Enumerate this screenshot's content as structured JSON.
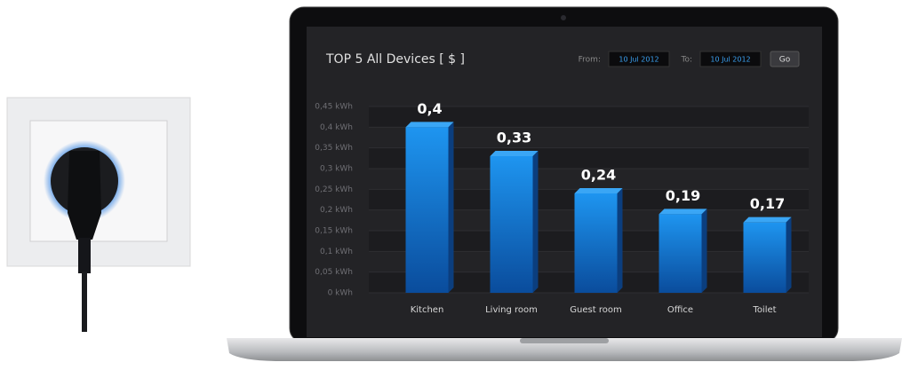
{
  "chart_data": {
    "type": "bar",
    "title": "TOP 5 All Devices [ $ ]",
    "categories": [
      "Kitchen",
      "Living room",
      "Guest room",
      "Office",
      "Toilet"
    ],
    "values": [
      0.4,
      0.33,
      0.24,
      0.19,
      0.17
    ],
    "value_labels": [
      "0,4",
      "0,33",
      "0,24",
      "0,19",
      "0,17"
    ],
    "color": "#1683e0",
    "ylim": [
      0,
      0.45
    ],
    "yticks": [
      {
        "value": 0,
        "label": "0 kWh"
      },
      {
        "value": 0.05,
        "label": "0,05 kWh"
      },
      {
        "value": 0.1,
        "label": "0,1 kWh"
      },
      {
        "value": 0.15,
        "label": "0,15 kWh"
      },
      {
        "value": 0.2,
        "label": "0,2 kWh"
      },
      {
        "value": 0.25,
        "label": "0,25 kWh"
      },
      {
        "value": 0.3,
        "label": "0,3 kWh"
      },
      {
        "value": 0.35,
        "label": "0,35 kWh"
      },
      {
        "value": 0.4,
        "label": "0,4 kWh"
      },
      {
        "value": 0.45,
        "label": "0,45 kWh"
      }
    ],
    "grid": true
  },
  "controls": {
    "from_label": "From:",
    "from_date": "10 Jul 2012",
    "to_label": "To:",
    "to_date": "10 Jul 2012",
    "button": "Go"
  }
}
